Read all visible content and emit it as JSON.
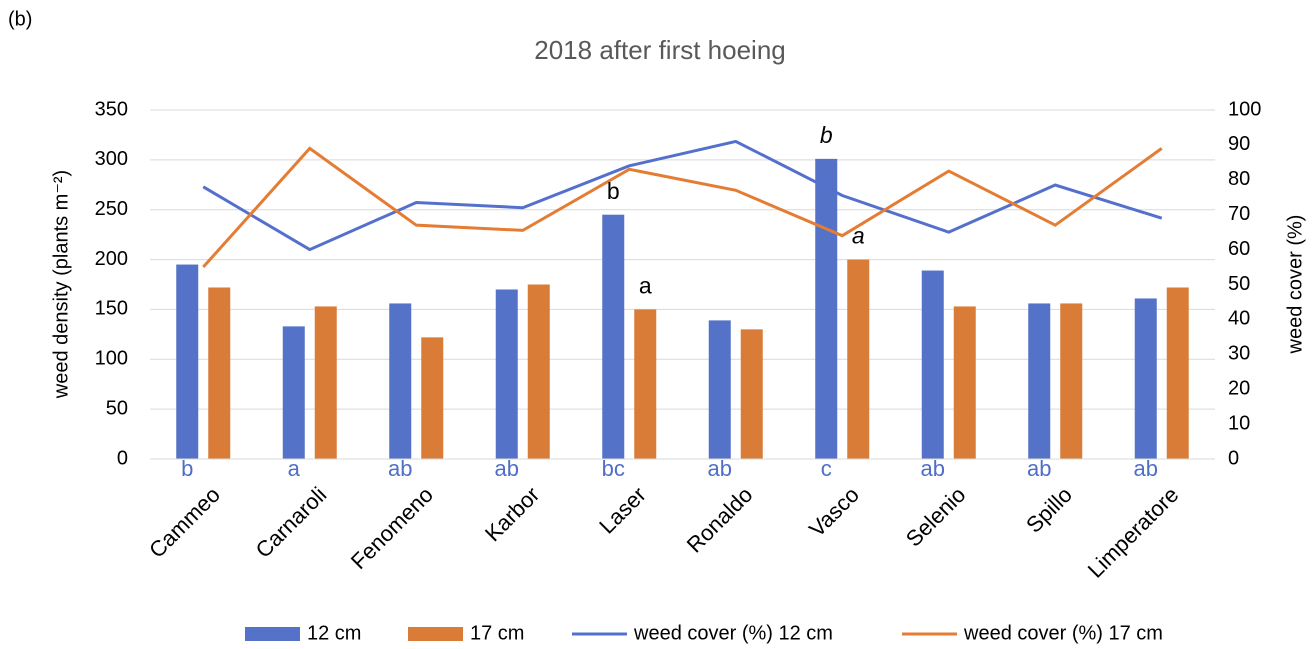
{
  "panel_label": "(b)",
  "chart_data": {
    "type": "bar",
    "title": "2018 after first hoeing",
    "ylabel": "weed density (plants m⁻²)",
    "y2label": "weed cover (%)",
    "categories": [
      "Cammeo",
      "Carnaroli",
      "Fenomeno",
      "Karbor",
      "Laser",
      "Ronaldo",
      "Vasco",
      "Selenio",
      "Spillo",
      "Limperatore"
    ],
    "series": [
      {
        "name": "12 cm",
        "type": "bar",
        "color": "#5472c7",
        "values": [
          195,
          133,
          156,
          170,
          245,
          139,
          301,
          189,
          156,
          161
        ]
      },
      {
        "name": "17 cm",
        "type": "bar",
        "color": "#d97c38",
        "values": [
          172,
          153,
          122,
          175,
          150,
          130,
          200,
          153,
          156,
          172
        ]
      },
      {
        "name": "weed cover (%) 12 cm",
        "type": "line",
        "axis": "y2",
        "color": "#5470cc",
        "values": [
          78,
          60,
          73.5,
          72,
          84,
          91,
          75.5,
          65,
          78.5,
          69
        ]
      },
      {
        "name": "weed cover (%) 17 cm",
        "type": "line",
        "axis": "y2",
        "color": "#e47c34",
        "values": [
          55,
          89,
          67,
          65.5,
          83,
          77,
          64,
          82.5,
          67,
          89
        ]
      }
    ],
    "group_letters": [
      "b",
      "a",
      "ab",
      "ab",
      "bc",
      "ab",
      "c",
      "ab",
      "ab",
      "ab"
    ],
    "group_letter_color": "#4f6fc6",
    "bar_labels": [
      {
        "series": 0,
        "index": 4,
        "text": "b",
        "italic": false
      },
      {
        "series": 1,
        "index": 4,
        "text": "a",
        "italic": false
      },
      {
        "series": 0,
        "index": 6,
        "text": "b",
        "italic": true
      },
      {
        "series": 1,
        "index": 6,
        "text": "a",
        "italic": true
      }
    ],
    "ylim": [
      0,
      350
    ],
    "yticks": [
      0,
      50,
      100,
      150,
      200,
      250,
      300,
      350
    ],
    "y2lim": [
      0,
      100
    ],
    "y2ticks": [
      0,
      10,
      20,
      30,
      40,
      50,
      60,
      70,
      80,
      90,
      100
    ],
    "grid": true,
    "legend": "bottom"
  }
}
